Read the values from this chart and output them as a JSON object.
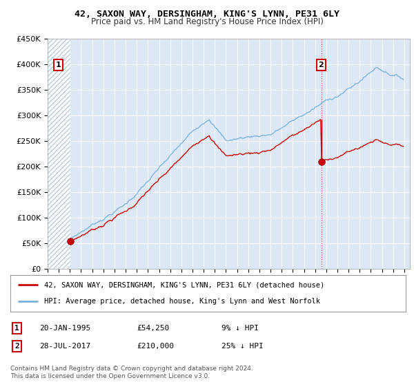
{
  "title": "42, SAXON WAY, DERSINGHAM, KING'S LYNN, PE31 6LY",
  "subtitle": "Price paid vs. HM Land Registry's House Price Index (HPI)",
  "ylim": [
    0,
    450000
  ],
  "yticks": [
    0,
    50000,
    100000,
    150000,
    200000,
    250000,
    300000,
    350000,
    400000,
    450000
  ],
  "ytick_labels": [
    "£0",
    "£50K",
    "£100K",
    "£150K",
    "£200K",
    "£250K",
    "£300K",
    "£350K",
    "£400K",
    "£450K"
  ],
  "xlim_start": 1993.0,
  "xlim_end": 2025.5,
  "background_color": "#ffffff",
  "plot_bg_color": "#dce8f5",
  "hatch_color": "#b8c8d8",
  "grid_color": "#ffffff",
  "line1_color": "#cc0000",
  "line2_color": "#7ab0d8",
  "sale1_date": 1995.05,
  "sale1_price": 54250,
  "sale2_date": 2017.57,
  "sale2_price": 210000,
  "legend_label1": "42, SAXON WAY, DERSINGHAM, KING'S LYNN, PE31 6LY (detached house)",
  "legend_label2": "HPI: Average price, detached house, King's Lynn and West Norfolk",
  "table_row1": [
    "1",
    "20-JAN-1995",
    "£54,250",
    "9% ↓ HPI"
  ],
  "table_row2": [
    "2",
    "28-JUL-2017",
    "£210,000",
    "25% ↓ HPI"
  ],
  "footnote": "Contains HM Land Registry data © Crown copyright and database right 2024.\nThis data is licensed under the Open Government Licence v3.0.",
  "marker_color": "#cc0000",
  "marker_size": 7
}
